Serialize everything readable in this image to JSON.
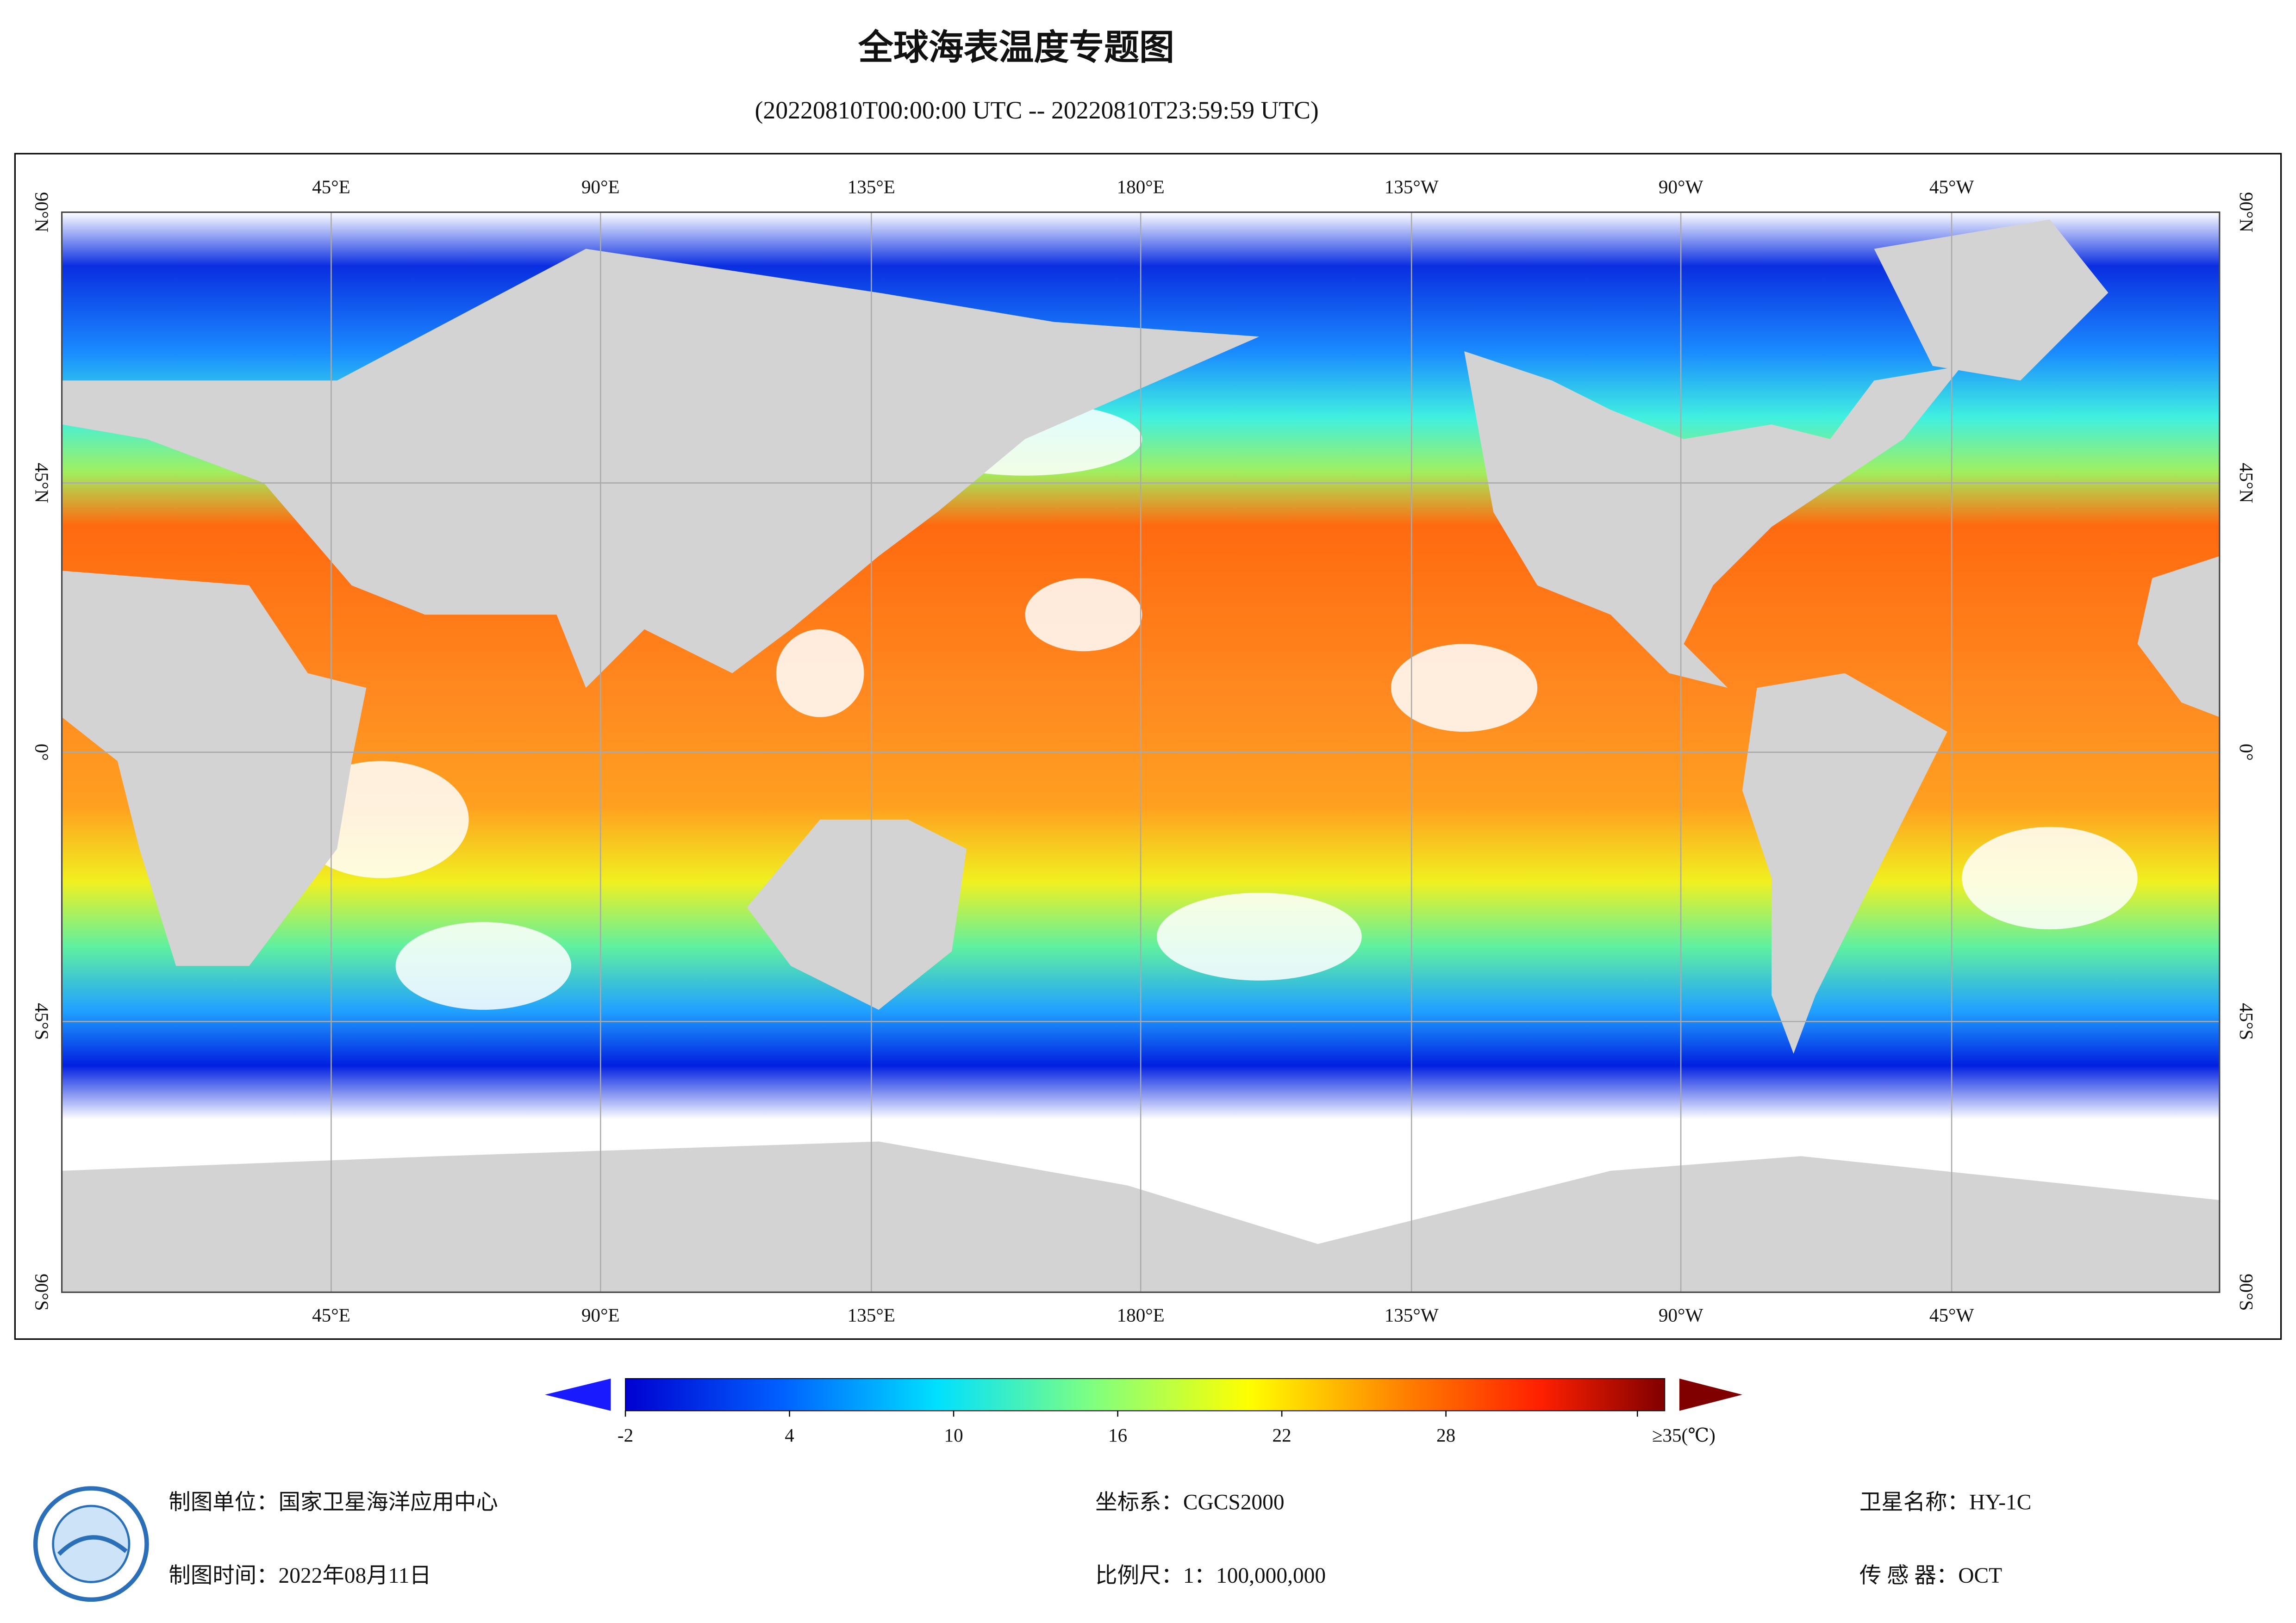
{
  "header": {
    "title": "全球海表温度专题图",
    "subtitle": "(20220810T00:00:00 UTC -- 20220810T23:59:59 UTC)"
  },
  "map": {
    "lon_labels": [
      "45°E",
      "90°E",
      "135°E",
      "180°E",
      "135°W",
      "90°W",
      "45°W"
    ],
    "lat_labels": [
      "90°N",
      "45°N",
      "0°",
      "45°S",
      "90°S"
    ]
  },
  "colorbar": {
    "clim": [
      -2,
      36
    ],
    "ticks": [
      -2,
      4,
      10,
      16,
      22,
      28,
      {
        "value": 35,
        "label": "≥35(℃)"
      }
    ]
  },
  "footer": {
    "left": [
      "制图单位：国家卫星海洋应用中心",
      "制图时间：2022年08月11日"
    ],
    "middle": [
      "坐标系：CGCS2000",
      "比例尺：1：100,000,000"
    ],
    "right": [
      "卫星名称：HY-1C",
      "传 感 器：OCT"
    ]
  }
}
